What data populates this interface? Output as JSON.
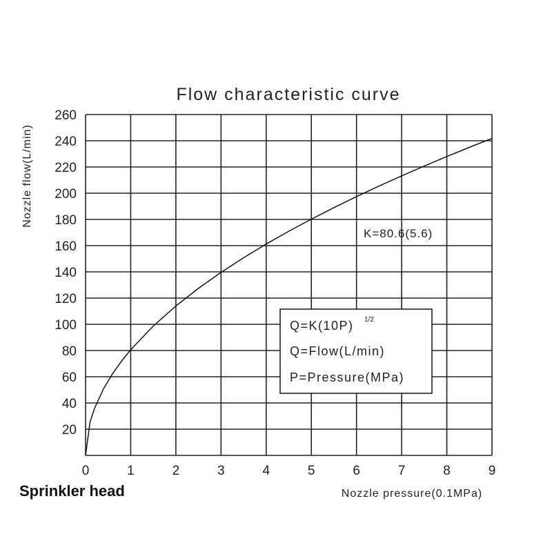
{
  "chart_data": {
    "type": "line",
    "title": "Flow characteristic curve",
    "xlabel": "Nozzle pressure(0.1MPa)",
    "ylabel": "Nozzle flow(L/min)",
    "xlim": [
      0,
      9
    ],
    "ylim": [
      0,
      260
    ],
    "x_ticks": [
      "0",
      "1",
      "2",
      "3",
      "4",
      "5",
      "6",
      "7",
      "8",
      "9"
    ],
    "y_ticks": [
      "20",
      "40",
      "60",
      "80",
      "100",
      "120",
      "140",
      "160",
      "180",
      "200",
      "220",
      "240",
      "260"
    ],
    "grid": true,
    "series": [
      {
        "formula_K": 80.6,
        "x": [
          0,
          0.1,
          0.2,
          0.4,
          0.6,
          0.8,
          1,
          1.5,
          2,
          2.5,
          3,
          3.5,
          4,
          4.5,
          5,
          5.5,
          6,
          6.5,
          7,
          7.5,
          8,
          8.5,
          9
        ],
        "y": [
          0,
          25.5,
          36.0,
          51.0,
          62.4,
          72.1,
          80.6,
          98.7,
          114.0,
          127.4,
          139.6,
          150.8,
          161.2,
          171.0,
          180.2,
          189.0,
          197.4,
          205.5,
          213.2,
          220.7,
          228.0,
          235.0,
          241.8
        ]
      }
    ],
    "annotations": {
      "k_label": "K=80.6(5.6)",
      "formula_main": "Q=K(10P)",
      "formula_exp": "1/2",
      "formula_flow": "Q=Flow(L/min)",
      "formula_pressure": "P=Pressure(MPa)"
    }
  },
  "caption": "Sprinkler head"
}
